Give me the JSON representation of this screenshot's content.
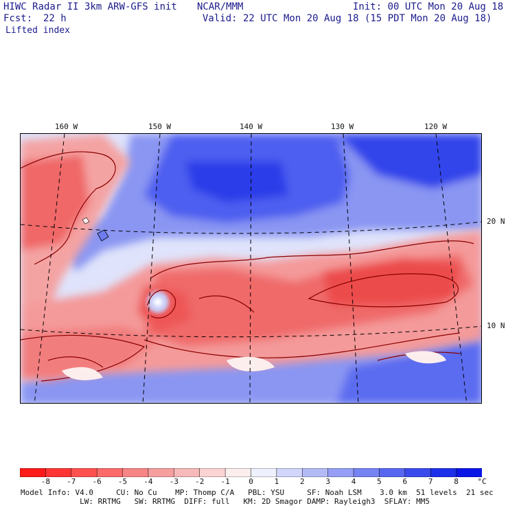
{
  "header": {
    "left_line1": "HIWC Radar II 3km ARW-GFS init",
    "org": "NCAR/MMM",
    "init": "Init: 00 UTC Mon 20 Aug 18",
    "fcst_label": "Fcst:",
    "fcst_value": "22 h",
    "valid": "Valid: 22 UTC Mon 20 Aug 18 (15 PDT Mon 20 Aug 18)",
    "field": "Lifted index"
  },
  "map": {
    "lon_labels": [
      "160 W",
      "150 W",
      "140 W",
      "130 W",
      "120 W"
    ],
    "lat_labels": [
      "20 N",
      "10 N"
    ]
  },
  "colorbar": {
    "ticks": [
      "-8",
      "-7",
      "-6",
      "-5",
      "-4",
      "-3",
      "-2",
      "-1",
      "0",
      "1",
      "2",
      "3",
      "4",
      "5",
      "6",
      "7",
      "8"
    ],
    "unit": "°C",
    "colors": [
      "#ff1a1a",
      "#ff3535",
      "#ff5050",
      "#fb6b6b",
      "#f78585",
      "#f59f9f",
      "#f7b9b9",
      "#fad3d3",
      "#fdeeee",
      "#eef0fd",
      "#d1d6fa",
      "#b3bbf7",
      "#959ff5",
      "#7683f2",
      "#5867ef",
      "#3a4bec",
      "#1d30e9",
      "#0a16e6"
    ]
  },
  "footer": {
    "line1": "Model Info: V4.0     CU: No Cu    MP: Thomp C/A   PBL: YSU     SF: Noah LSM    3.0 km  51 levels  21 sec",
    "line2": "             LW: RRTMG   SW: RRTMG  DIFF: full   KM: 2D Smagor DAMP: Rayleigh3  SFLAY: MM5"
  }
}
